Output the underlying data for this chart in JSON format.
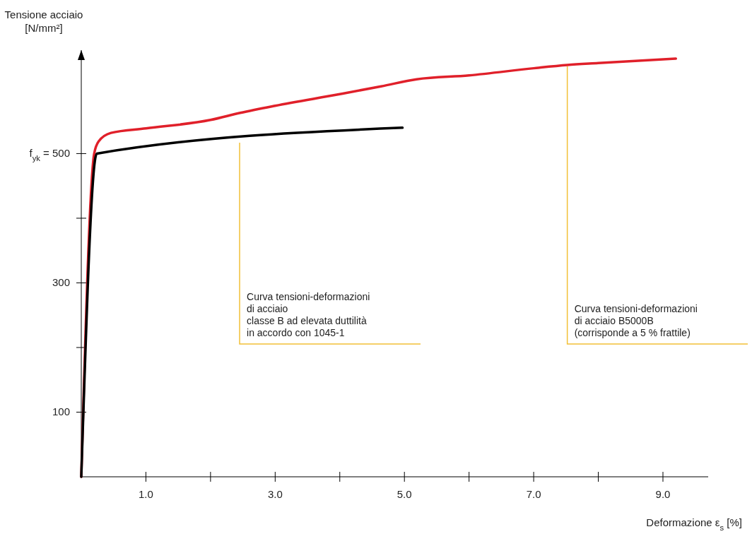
{
  "chart_data": {
    "type": "line",
    "xlabel": "Deformazione ε$_{s}$ [%]",
    "ylabel": "Tensione acciaio\n[N/mm²]",
    "xlim": [
      0,
      9.7
    ],
    "ylim": [
      0,
      660
    ],
    "xticks": [
      {
        "value": 1,
        "label": "1.0"
      },
      {
        "value": 2,
        "label": null
      },
      {
        "value": 3,
        "label": "3.0"
      },
      {
        "value": 4,
        "label": null
      },
      {
        "value": 5,
        "label": "5.0"
      },
      {
        "value": 6,
        "label": null
      },
      {
        "value": 7,
        "label": "7.0"
      },
      {
        "value": 8,
        "label": null
      },
      {
        "value": 9,
        "label": "9.0"
      }
    ],
    "yticks": [
      100,
      {
        "value": 200,
        "label": null
      },
      300,
      {
        "value": 400,
        "label": null
      },
      {
        "value": 500,
        "label": "f$_{yk}$ = 500"
      }
    ],
    "grid": false,
    "marker": "none",
    "line_style": "solid",
    "series": [
      {
        "color": "#e0202a",
        "x": [
          0,
          0.2,
          0.27,
          0.46,
          1,
          2,
          2.46,
          3,
          4,
          4.64,
          5.19,
          6,
          7,
          7.52,
          8,
          9.2
        ],
        "values": [
          0,
          500,
          519,
          532,
          539,
          552,
          563,
          574,
          592,
          604,
          615,
          621,
          632,
          637,
          640,
          647
        ]
      },
      {
        "color": "#000000",
        "x": [
          0,
          0.24,
          4.97
        ],
        "values": [
          0,
          500,
          540
        ]
      }
    ],
    "annotations": [
      {
        "text": "Curva tensioni-deformazioni\ndi acciaio\nclasse B ad elevata duttilità\nin accordo con 1045-1",
        "x": 2.45,
        "y": 519
      },
      {
        "text": "Curva tensioni-deformazioni\ndi acciaio B5000B\n(corrisponde a 5 % frattile)",
        "x": 7.52,
        "y": 637
      }
    ]
  }
}
